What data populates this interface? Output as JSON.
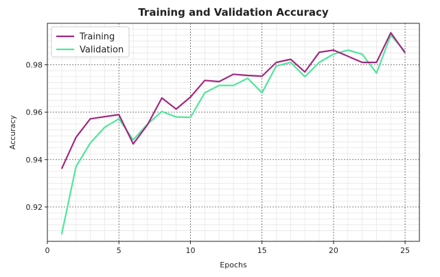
{
  "chart_data": {
    "type": "line",
    "title": "Training and Validation Accuracy",
    "xlabel": "Epochs",
    "ylabel": "Accuracy",
    "xlim": [
      0,
      26
    ],
    "ylim": [
      0.9055,
      0.9975
    ],
    "xticks": [
      0,
      5,
      10,
      15,
      20,
      25
    ],
    "yticks": [
      0.92,
      0.94,
      0.96,
      0.98
    ],
    "xtick_labels": [
      "0",
      "5",
      "10",
      "15",
      "20",
      "25"
    ],
    "ytick_labels": [
      "0.92",
      "0.94",
      "0.96",
      "0.98"
    ],
    "grid": true,
    "legend_position": "top-left",
    "x": [
      1,
      2,
      3,
      4,
      5,
      6,
      7,
      8,
      9,
      10,
      11,
      12,
      13,
      14,
      15,
      16,
      17,
      18,
      19,
      20,
      21,
      22,
      23,
      24,
      25
    ],
    "series": [
      {
        "name": "Training",
        "color": "#a3267f",
        "values": [
          0.9361,
          0.9494,
          0.9572,
          0.9581,
          0.959,
          0.9466,
          0.9547,
          0.966,
          0.9613,
          0.9664,
          0.9734,
          0.9729,
          0.976,
          0.9755,
          0.9752,
          0.981,
          0.9823,
          0.977,
          0.9853,
          0.9862,
          0.9836,
          0.981,
          0.981,
          0.9935,
          0.985
        ]
      },
      {
        "name": "Validation",
        "color": "#4ee59b",
        "values": [
          0.9085,
          0.937,
          0.947,
          0.9536,
          0.9572,
          0.9483,
          0.955,
          0.9603,
          0.958,
          0.9578,
          0.9682,
          0.9713,
          0.9713,
          0.9743,
          0.9682,
          0.9795,
          0.981,
          0.975,
          0.981,
          0.9845,
          0.9862,
          0.9845,
          0.9765,
          0.9925,
          0.9856
        ]
      }
    ]
  }
}
